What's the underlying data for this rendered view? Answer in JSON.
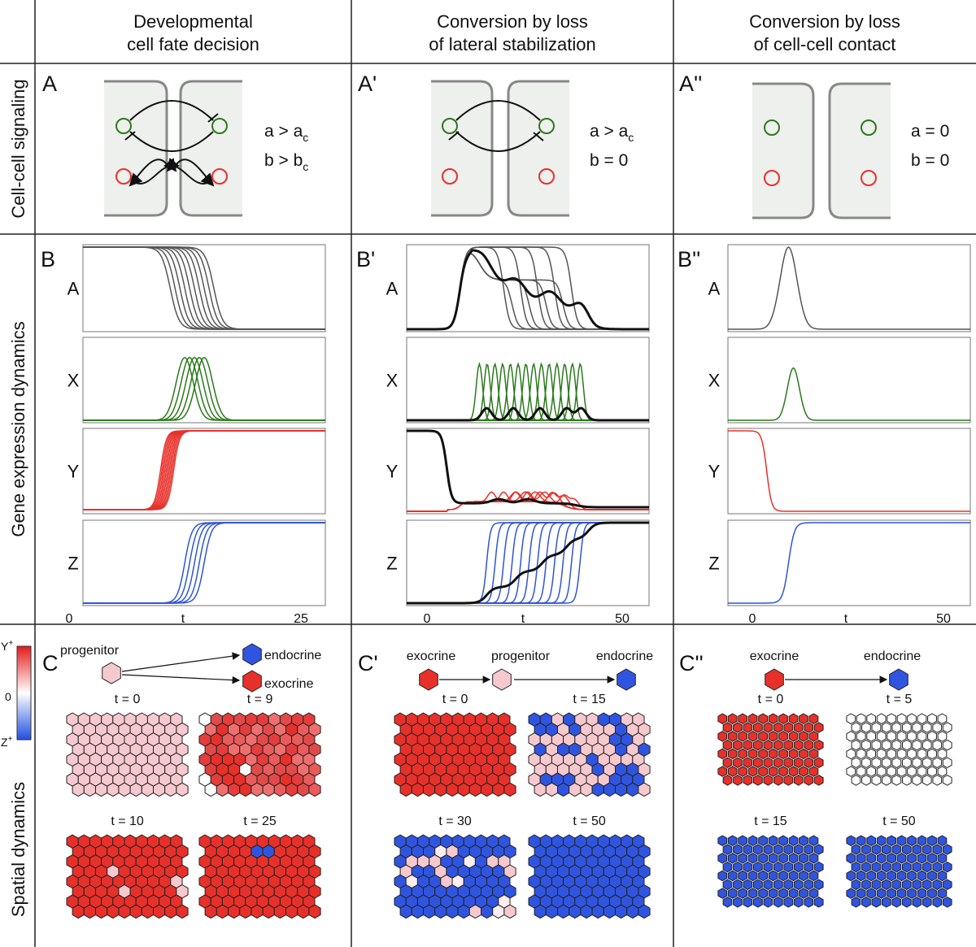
{
  "row_labels": [
    "Cell-cell signaling",
    "Gene expression dynamics",
    "Spatial dynamics"
  ],
  "colorbar": {
    "top": "Y",
    "top_sup": "+",
    "middle": "0",
    "bottom": "Z",
    "bottom_sup": "+"
  },
  "columns": [
    {
      "title": [
        "Developmental",
        "cell fate decision"
      ],
      "signaling": {
        "label": "A",
        "equations": [
          {
            "text": "a > a",
            "sub": "c"
          },
          {
            "text": "b > b",
            "sub": "c"
          }
        ]
      },
      "dynamics": {
        "label": "B",
        "plots": [
          "A",
          "X",
          "Y",
          "Z"
        ],
        "x_ticks": [
          "0",
          "t",
          "25"
        ]
      },
      "spatial": {
        "label": "C",
        "nodes": [
          "progenitor",
          "endocrine",
          "exocrine"
        ],
        "snapshots": [
          "t = 0",
          "t = 9",
          "t = 10",
          "t = 25"
        ]
      }
    },
    {
      "title": [
        "Conversion by loss",
        "of lateral stabilization"
      ],
      "signaling": {
        "label": "A'",
        "equations": [
          {
            "text": "a > a",
            "sub": "c"
          },
          {
            "text": "b = 0"
          }
        ]
      },
      "dynamics": {
        "label": "B'",
        "plots": [
          "A",
          "X",
          "Y",
          "Z"
        ],
        "x_ticks": [
          "0",
          "t",
          "50"
        ]
      },
      "spatial": {
        "label": "C'",
        "nodes": [
          "exocrine",
          "progenitor",
          "endocrine"
        ],
        "snapshots": [
          "t = 0",
          "t = 15",
          "t = 30",
          "t = 50"
        ]
      }
    },
    {
      "title": [
        "Conversion by loss",
        "of cell-cell contact"
      ],
      "signaling": {
        "label": "A''",
        "equations": [
          {
            "text": "a = 0"
          },
          {
            "text": "b = 0"
          }
        ]
      },
      "dynamics": {
        "label": "B''",
        "plots": [
          "A",
          "X",
          "Y",
          "Z"
        ],
        "x_ticks": [
          "0",
          "t",
          "50"
        ]
      },
      "spatial": {
        "label": "C''",
        "nodes": [
          "exocrine",
          "endocrine"
        ],
        "snapshots": [
          "t = 0",
          "t = 5",
          "t = 15",
          "t = 50"
        ]
      }
    }
  ]
}
